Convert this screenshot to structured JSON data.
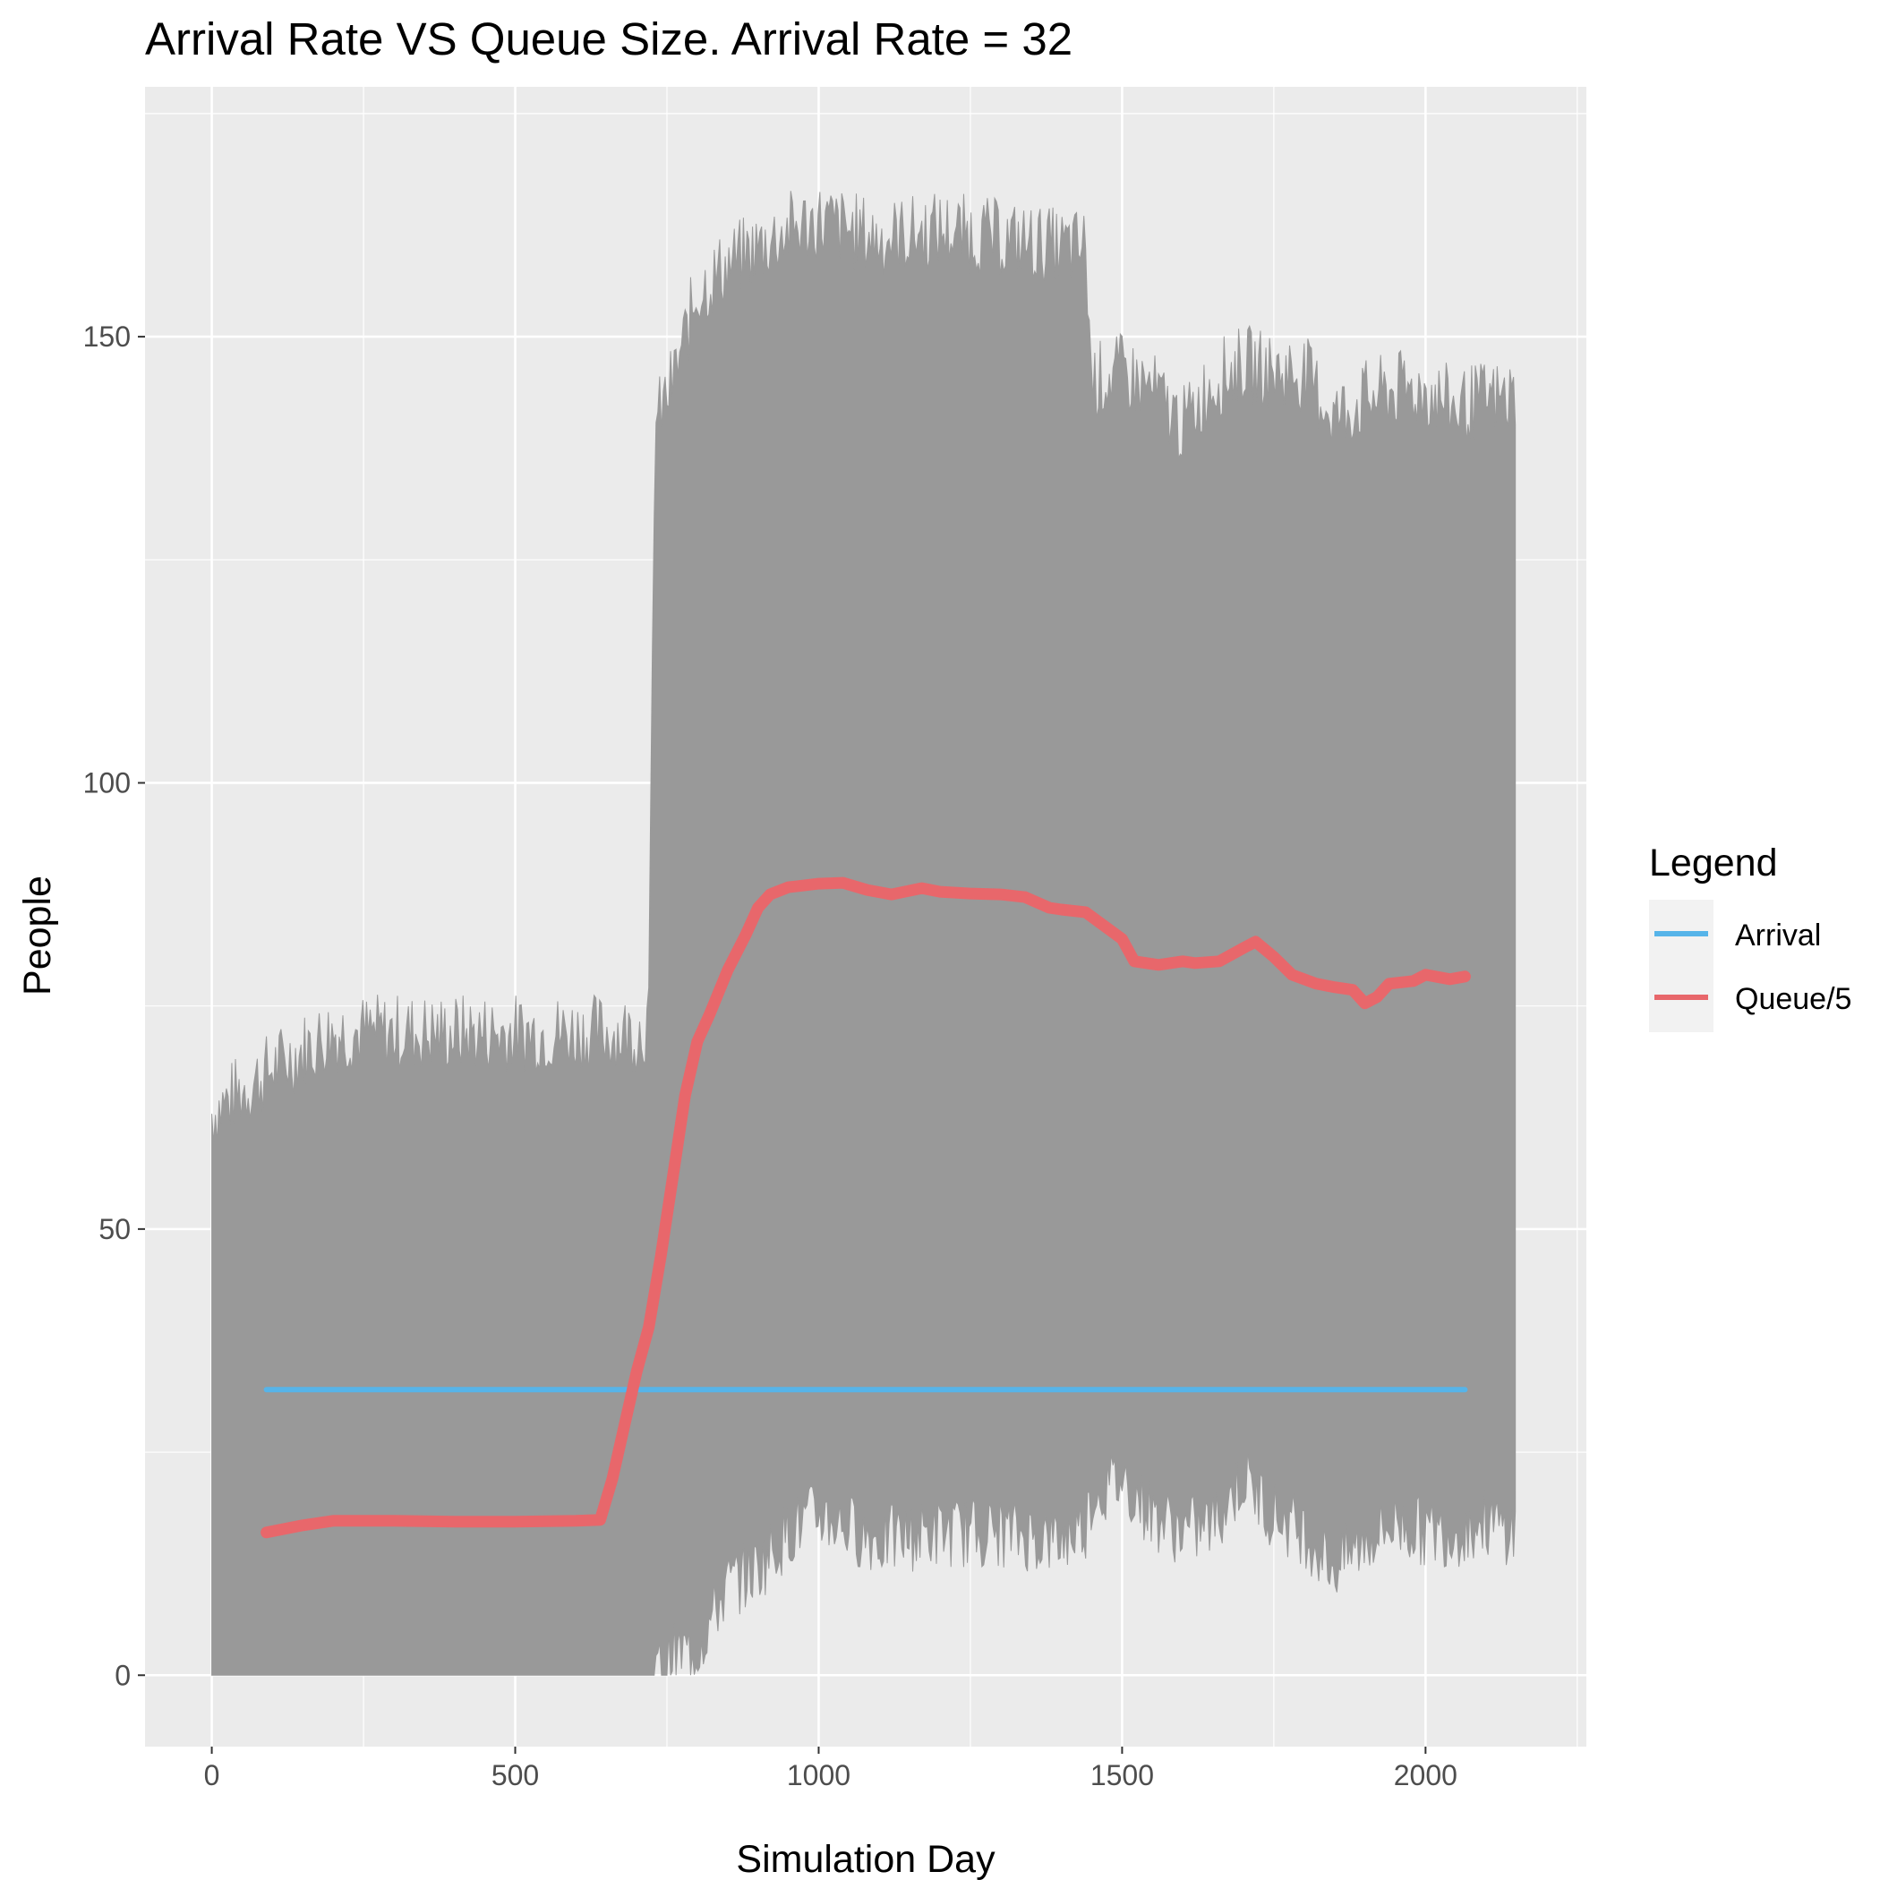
{
  "chart_data": {
    "type": "line",
    "title": "Arrival Rate VS Queue Size. Arrival Rate = 32",
    "xlabel": "Simulation Day",
    "ylabel": "People",
    "xlim": [
      -110,
      2265
    ],
    "ylim": [
      -8,
      178
    ],
    "x_ticks": [
      0,
      500,
      1000,
      1500,
      2000
    ],
    "y_ticks": [
      0,
      50,
      100,
      150
    ],
    "grid": true,
    "background": "#ebebeb",
    "legend": {
      "title": "Legend",
      "placement": "right",
      "entries": [
        {
          "label": "Arrival",
          "color": "#56b4e9"
        },
        {
          "label": "Queue/5",
          "color": "#e8676b"
        }
      ]
    },
    "daily_range": {
      "color": "#999999",
      "description_x": [
        0,
        100,
        200,
        300,
        400,
        500,
        600,
        700,
        720,
        730,
        760,
        800,
        850,
        900,
        950,
        1000,
        1100,
        1200,
        1300,
        1400,
        1440,
        1450,
        1500,
        1550,
        1600,
        1650,
        1700,
        1750,
        1800,
        1850,
        1900,
        1950,
        2000,
        2050,
        2100,
        2150
      ],
      "low": [
        0,
        0,
        0,
        0,
        0,
        0,
        0,
        0,
        0,
        0,
        2,
        3,
        10,
        12,
        16,
        18,
        15,
        16,
        16,
        15,
        17,
        20,
        22,
        18,
        16,
        17,
        22,
        18,
        16,
        12,
        15,
        17,
        16,
        16,
        17,
        16
      ],
      "high": [
        63,
        68,
        72,
        72,
        72,
        72,
        72,
        72,
        73,
        140,
        145,
        155,
        158,
        160,
        162,
        163,
        161,
        162,
        161,
        160,
        160,
        145,
        146,
        144,
        140,
        145,
        147,
        146,
        146,
        141,
        143,
        144,
        144,
        142,
        143,
        143
      ]
    },
    "series": [
      {
        "name": "Arrival",
        "color": "#56b4e9",
        "x": [
          90,
          2065
        ],
        "y": [
          32,
          32
        ]
      },
      {
        "name": "Queue/5",
        "color": "#e8676b",
        "x": [
          90,
          150,
          200,
          300,
          400,
          500,
          600,
          640,
          660,
          680,
          700,
          720,
          740,
          760,
          780,
          800,
          820,
          850,
          880,
          900,
          920,
          950,
          1000,
          1040,
          1080,
          1120,
          1170,
          1200,
          1250,
          1300,
          1340,
          1380,
          1400,
          1440,
          1470,
          1500,
          1520,
          1560,
          1600,
          1620,
          1660,
          1700,
          1720,
          1750,
          1780,
          1820,
          1850,
          1880,
          1900,
          1920,
          1940,
          1980,
          2000,
          2040,
          2065
        ],
        "y": [
          16,
          16.8,
          17.3,
          17.3,
          17.2,
          17.2,
          17.3,
          17.4,
          22,
          28,
          34,
          39,
          47,
          56,
          65,
          71,
          74,
          79,
          83,
          86,
          87.5,
          88.3,
          88.7,
          88.8,
          88.0,
          87.5,
          88.2,
          87.8,
          87.6,
          87.5,
          87.2,
          86.0,
          85.8,
          85.5,
          84.0,
          82.5,
          80.0,
          79.6,
          80.0,
          79.8,
          80.0,
          81.5,
          82.2,
          80.5,
          78.5,
          77.5,
          77.1,
          76.8,
          75.3,
          76.0,
          77.5,
          77.8,
          78.5,
          78.0,
          78.3
        ]
      }
    ]
  }
}
